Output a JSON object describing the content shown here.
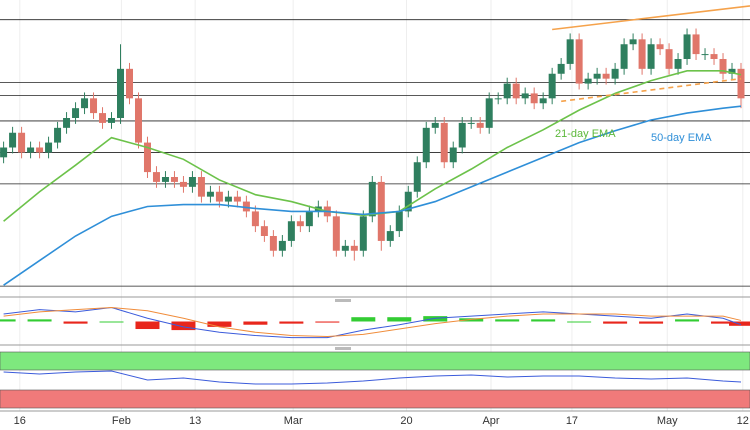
{
  "chart_data": {
    "type": "candlestick",
    "xlim": [
      -0.4,
      83
    ],
    "ylim": [
      0,
      300
    ],
    "up_color": "#2f7f5f",
    "down_color": "#e0766a",
    "grid": true,
    "open": [
      140,
      150,
      165,
      145,
      150,
      145,
      155,
      170,
      180,
      190,
      200,
      185,
      175,
      180,
      230,
      200,
      155,
      125,
      115,
      120,
      115,
      110,
      120,
      100,
      105,
      95,
      100,
      95,
      85,
      70,
      60,
      45,
      55,
      75,
      70,
      85,
      90,
      80,
      45,
      50,
      45,
      80,
      115,
      55,
      65,
      85,
      105,
      135,
      170,
      175,
      135,
      150,
      175,
      175,
      170,
      200,
      200,
      215,
      200,
      205,
      195,
      200,
      225,
      235,
      260,
      215,
      220,
      225,
      220,
      230,
      255,
      260,
      230,
      255,
      250,
      230,
      240,
      265,
      245,
      245,
      240,
      225,
      230
    ],
    "high": [
      156,
      171,
      171,
      156,
      156,
      161,
      176,
      186,
      196,
      206,
      206,
      191,
      186,
      255,
      236,
      206,
      161,
      131,
      126,
      126,
      121,
      126,
      126,
      111,
      111,
      106,
      106,
      101,
      91,
      76,
      66,
      61,
      81,
      81,
      91,
      96,
      96,
      86,
      56,
      56,
      86,
      121,
      121,
      71,
      91,
      111,
      141,
      176,
      181,
      181,
      156,
      181,
      181,
      181,
      206,
      206,
      221,
      221,
      211,
      211,
      206,
      231,
      241,
      266,
      266,
      226,
      231,
      231,
      236,
      261,
      266,
      266,
      261,
      261,
      256,
      246,
      271,
      271,
      251,
      251,
      246,
      236,
      236
    ],
    "low": [
      134,
      144,
      139,
      139,
      139,
      139,
      149,
      164,
      174,
      184,
      179,
      169,
      169,
      174,
      194,
      149,
      119,
      109,
      109,
      109,
      104,
      104,
      94,
      94,
      89,
      89,
      89,
      79,
      64,
      54,
      39,
      39,
      49,
      64,
      64,
      79,
      74,
      39,
      39,
      35,
      39,
      74,
      45,
      49,
      59,
      79,
      99,
      129,
      164,
      129,
      129,
      144,
      169,
      164,
      164,
      194,
      194,
      194,
      194,
      189,
      189,
      194,
      219,
      229,
      209,
      209,
      214,
      214,
      214,
      224,
      249,
      224,
      224,
      244,
      224,
      224,
      234,
      239,
      239,
      234,
      219,
      219,
      190
    ],
    "close": [
      150,
      165,
      145,
      150,
      145,
      155,
      170,
      180,
      190,
      200,
      185,
      175,
      180,
      230,
      200,
      155,
      125,
      115,
      120,
      115,
      110,
      120,
      100,
      105,
      95,
      100,
      95,
      85,
      70,
      60,
      45,
      55,
      75,
      70,
      85,
      90,
      80,
      45,
      50,
      45,
      80,
      115,
      55,
      65,
      85,
      105,
      135,
      170,
      175,
      135,
      150,
      175,
      175,
      170,
      200,
      200,
      215,
      200,
      205,
      195,
      200,
      225,
      235,
      260,
      215,
      220,
      225,
      220,
      230,
      255,
      260,
      230,
      255,
      250,
      230,
      240,
      265,
      245,
      245,
      240,
      225,
      230,
      200
    ],
    "series": [
      {
        "name": "21-day EMA",
        "color": "#6cc24a",
        "x": [
          0,
          4,
          8,
          12,
          16,
          20,
          24,
          28,
          32,
          36,
          40,
          44,
          48,
          52,
          56,
          60,
          64,
          68,
          72,
          76,
          80,
          82
        ],
        "values": [
          75,
          105,
          132,
          160,
          150,
          138,
          117,
          102,
          95,
          85,
          81,
          85,
          108,
          128,
          150,
          168,
          188,
          205,
          218,
          228,
          228,
          224
        ]
      },
      {
        "name": "50-day EMA",
        "color": "#2f8fd8",
        "x": [
          0,
          4,
          8,
          12,
          16,
          20,
          24,
          28,
          32,
          36,
          40,
          44,
          48,
          52,
          56,
          60,
          64,
          68,
          72,
          76,
          80,
          82
        ],
        "values": [
          10,
          35,
          60,
          80,
          90,
          92,
          92,
          88,
          85,
          85,
          82,
          85,
          95,
          110,
          125,
          140,
          155,
          167,
          178,
          185,
          190,
          192
        ]
      }
    ],
    "levels": [
      280,
      216,
      203,
      177,
      145,
      113,
      9
    ],
    "trendlines": [
      {
        "color": "#f5a24b",
        "dashed": false,
        "x": [
          61,
          83
        ],
        "values": [
          270,
          294
        ]
      },
      {
        "color": "#f5a24b",
        "dashed": true,
        "x": [
          62,
          82
        ],
        "values": [
          197,
          220
        ]
      }
    ],
    "xticks": [
      {
        "value": 1.8,
        "label": "16"
      },
      {
        "value": 13.1,
        "label": "Feb"
      },
      {
        "value": 21.3,
        "label": "13"
      },
      {
        "value": 32.2,
        "label": "Mar"
      },
      {
        "value": 44.8,
        "label": "20"
      },
      {
        "value": 54.2,
        "label": "Apr"
      },
      {
        "value": 63.2,
        "label": "17"
      },
      {
        "value": 73.8,
        "label": "May"
      },
      {
        "value": 82.2,
        "label": "12"
      }
    ],
    "macd": {
      "ylim": [
        -20,
        20
      ],
      "x": [
        0,
        4,
        8,
        12,
        16,
        20,
        24,
        28,
        32,
        36,
        40,
        44,
        48,
        52,
        56,
        60,
        64,
        68,
        72,
        76,
        80,
        82
      ],
      "line": {
        "color": "#3b5bdb",
        "values": [
          7,
          11,
          9,
          13,
          3,
          -5,
          -10,
          -13,
          -15,
          -15,
          -8,
          -3,
          3,
          5,
          7,
          9,
          7,
          5,
          3,
          7,
          3,
          -3
        ]
      },
      "signal": {
        "color": "#f08c3a",
        "values": [
          5,
          9,
          11,
          13,
          10,
          3,
          -5,
          -10,
          -13,
          -14,
          -12,
          -7,
          -2,
          2,
          5,
          7,
          7,
          7,
          5,
          5,
          5,
          1
        ]
      },
      "histogram": {
        "up_color": "#33cc33",
        "down_color": "#e8261c",
        "values": [
          2,
          2,
          -2,
          0,
          -7,
          -8,
          -5,
          -3,
          -2,
          -1,
          4,
          4,
          5,
          3,
          2,
          2,
          0,
          -2,
          -2,
          2,
          -2,
          -4
        ]
      }
    },
    "rsi": {
      "ylim": [
        0,
        62
      ],
      "x": [
        0,
        4,
        8,
        12,
        16,
        20,
        24,
        28,
        32,
        36,
        40,
        44,
        48,
        52,
        56,
        60,
        64,
        68,
        72,
        76,
        80,
        82
      ],
      "color": "#3b5bdb",
      "values": [
        38,
        36,
        38,
        39,
        30,
        32,
        28,
        26,
        26,
        27,
        29,
        32,
        34,
        35,
        33,
        34,
        34,
        32,
        31,
        32,
        29,
        28
      ],
      "zones": [
        {
          "color": "#7ee87e",
          "range": [
            40,
            58
          ]
        },
        {
          "color": "#f07a7a",
          "range": [
            2,
            20
          ]
        }
      ]
    }
  }
}
